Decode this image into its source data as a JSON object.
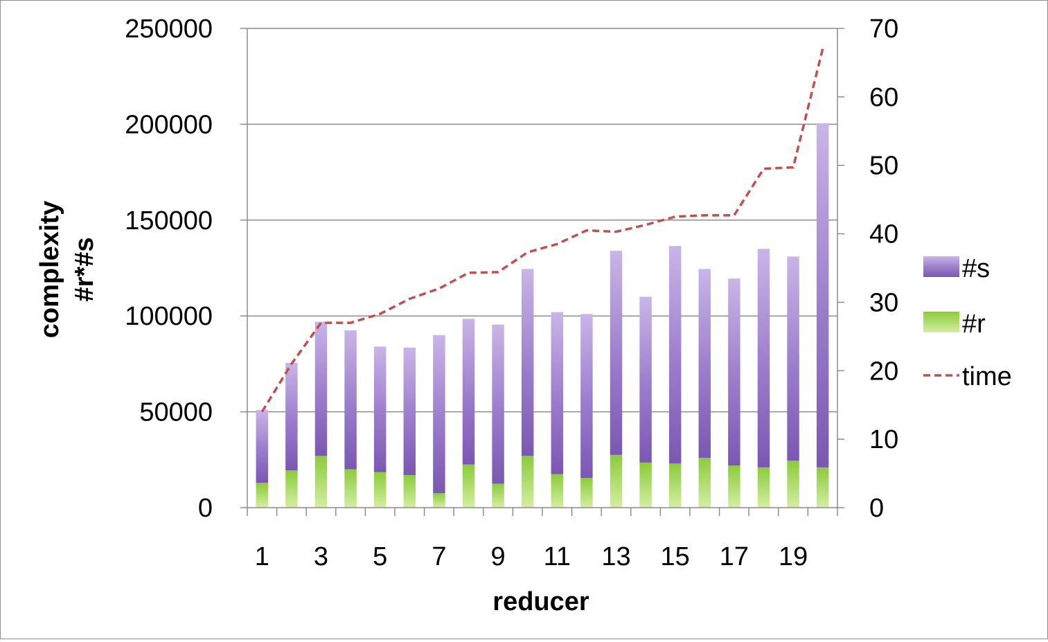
{
  "chart_data": {
    "type": "bar",
    "stacked": true,
    "xlabel": "reducer",
    "ylabel_lines": [
      "complexity",
      "#r*#s"
    ],
    "y2label": "",
    "ylim": [
      0,
      250000
    ],
    "y_ticks": [
      0,
      50000,
      100000,
      150000,
      200000,
      250000
    ],
    "y2lim": [
      0,
      70
    ],
    "y2_ticks": [
      0,
      10,
      20,
      30,
      40,
      50,
      60,
      70
    ],
    "categories": [
      "1",
      "2",
      "3",
      "4",
      "5",
      "6",
      "7",
      "8",
      "9",
      "10",
      "11",
      "12",
      "13",
      "14",
      "15",
      "16",
      "17",
      "18",
      "19",
      "20"
    ],
    "x_tick_labels": [
      "1",
      "",
      "3",
      "",
      "5",
      "",
      "7",
      "",
      "9",
      "",
      "11",
      "",
      "13",
      "",
      "15",
      "",
      "17",
      "",
      "19",
      ""
    ],
    "grid": "horizontal",
    "legend_position": "right",
    "series": [
      {
        "name": "#r",
        "axis": "left",
        "kind": "bar",
        "color": "#9ACD32",
        "values": [
          13000,
          19500,
          27000,
          20000,
          18500,
          17000,
          7500,
          22500,
          12500,
          27000,
          17500,
          15500,
          27500,
          23500,
          23000,
          26000,
          22000,
          21000,
          24500,
          21000
        ]
      },
      {
        "name": "#s",
        "axis": "left",
        "kind": "bar",
        "color": "#8E6BBF",
        "values": [
          38000,
          56000,
          70000,
          72500,
          65500,
          66500,
          82500,
          76000,
          83000,
          97500,
          84500,
          85500,
          106500,
          86500,
          113500,
          98500,
          97500,
          114000,
          106500,
          179500
        ]
      },
      {
        "name": "time",
        "axis": "right",
        "kind": "line",
        "color": "#C0504D",
        "values": [
          14,
          21,
          27,
          27,
          28.3,
          30.5,
          32,
          34.3,
          34.4,
          37.3,
          38.5,
          40.5,
          40.3,
          41.3,
          42.5,
          42.7,
          42.7,
          49.5,
          49.7,
          67
        ]
      }
    ]
  }
}
